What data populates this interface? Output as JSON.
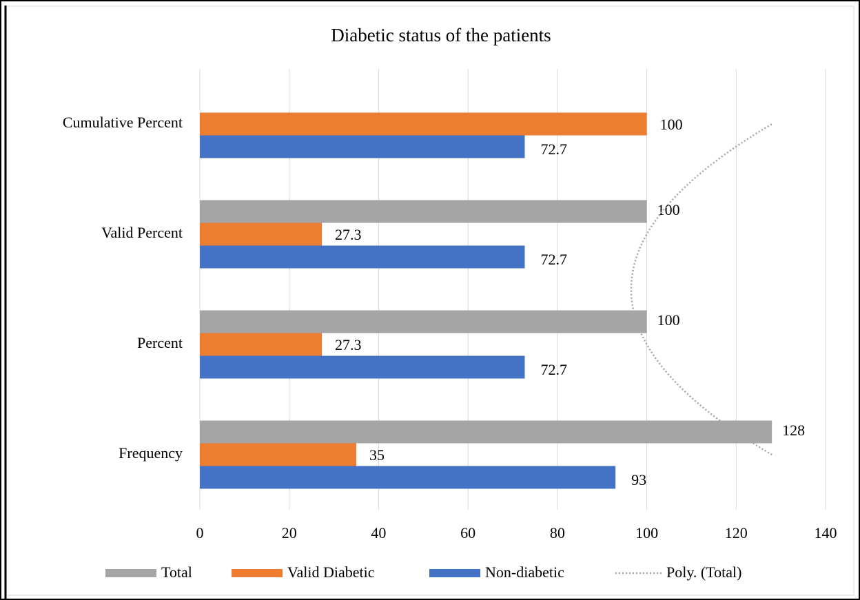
{
  "chart_data": {
    "type": "bar",
    "orientation": "horizontal",
    "title": "Diabetic status of the patients",
    "categories": [
      "Frequency",
      "Percent",
      "Valid Percent",
      "Cumulative Percent"
    ],
    "series": [
      {
        "name": "Total",
        "color": "#a5a5a5",
        "values": [
          128,
          100,
          100,
          null
        ]
      },
      {
        "name": "Valid Diabetic",
        "color": "#ed7d31",
        "values": [
          35,
          27.3,
          27.3,
          100
        ]
      },
      {
        "name": "Non-diabetic",
        "color": "#4472c4",
        "values": [
          93,
          72.7,
          72.7,
          72.7
        ]
      }
    ],
    "trendline": {
      "name": "Poly. (Total)",
      "series": 0,
      "order": 2,
      "color": "#a5a5a5"
    },
    "xlim": [
      0,
      140
    ],
    "xticks": [
      0,
      20,
      40,
      60,
      80,
      100,
      120,
      140
    ],
    "grid": true,
    "legend": "bottom"
  }
}
